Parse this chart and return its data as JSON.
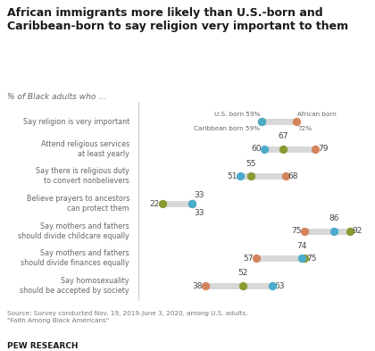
{
  "title": "African immigrants more likely than U.S.-born and\nCaribbean-born to say religion very important to them",
  "subtitle": "% of Black adults who ...",
  "source": "Source: Survey conducted Nov. 19, 2019-June 3, 2020, among U.S. adults.\n\"Faith Among Black Americans\"",
  "branding": "PEW RESEARCH",
  "categories": [
    "Say religion is very important",
    "Attend religious services\nat least yearly",
    "Say there is religious duty\nto convert nonbelievers",
    "Believe prayers to ancestors\ncan protect them",
    "Say mothers and fathers\nshould divide childcare equally",
    "Say mothers and fathers\nshould divide finances equally",
    "Say homosexuality\nshould be accepted by society"
  ],
  "us_born": [
    59,
    60,
    51,
    33,
    86,
    74,
    63
  ],
  "caribbean_born": [
    59,
    67,
    55,
    22,
    92,
    75,
    52
  ],
  "african_born": [
    72,
    79,
    68,
    33,
    75,
    57,
    38
  ],
  "color_us": "#4aacca",
  "color_caribbean": "#8a9a32",
  "color_african": "#d4845a",
  "connector_color": "#d8d8d8",
  "background": "#ffffff",
  "divider_color": "#cccccc",
  "cat_text_color": "#666666",
  "num_text_color": "#444444",
  "source_color": "#777777",
  "title_color": "#1a1a1a"
}
